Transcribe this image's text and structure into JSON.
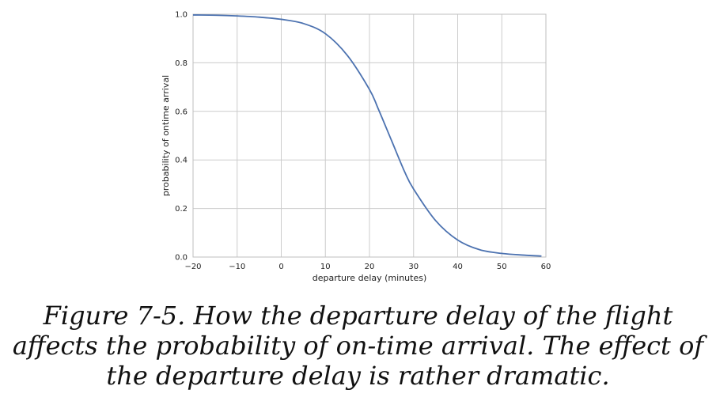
{
  "chart_data": {
    "type": "line",
    "title": "",
    "xlabel": "departure delay (minutes)",
    "ylabel": "probability of ontime arrival",
    "xlim": [
      -20,
      60
    ],
    "ylim": [
      0.0,
      1.0
    ],
    "grid": true,
    "x_ticks": [
      -20,
      -10,
      0,
      10,
      20,
      30,
      40,
      50,
      60
    ],
    "x_tick_labels": [
      "−20",
      "−10",
      "0",
      "10",
      "20",
      "30",
      "40",
      "50",
      "60"
    ],
    "y_ticks": [
      0.0,
      0.2,
      0.4,
      0.6,
      0.8,
      1.0
    ],
    "y_tick_labels": [
      "0.0",
      "0.2",
      "0.4",
      "0.6",
      "0.8",
      "1.0"
    ],
    "series": [
      {
        "color": "#4c72b0",
        "x": [
          -20,
          -15,
          -10,
          -5,
          0,
          5,
          10,
          15,
          20,
          22,
          25,
          28,
          30,
          35,
          40,
          45,
          50,
          55,
          59
        ],
        "y": [
          0.997,
          0.996,
          0.993,
          0.988,
          0.979,
          0.962,
          0.92,
          0.83,
          0.69,
          0.61,
          0.48,
          0.35,
          0.28,
          0.15,
          0.07,
          0.03,
          0.015,
          0.008,
          0.004
        ]
      }
    ]
  },
  "caption": {
    "text": "Figure 7-5. How the departure delay of the flight affects the probability of on-time arrival. The effect of the departure delay is rather dramatic."
  }
}
